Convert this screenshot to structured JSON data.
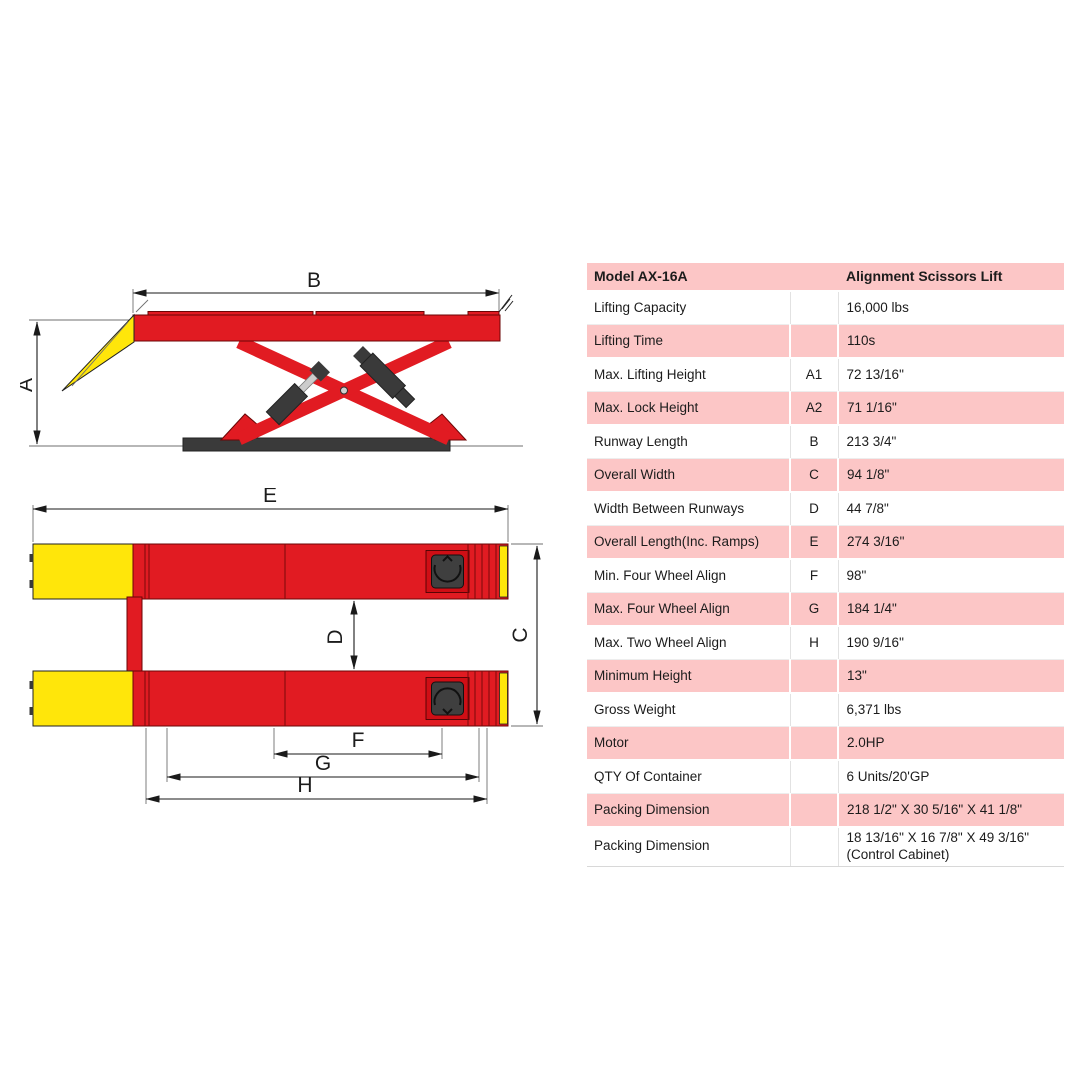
{
  "table": {
    "header": {
      "model": "Model AX-16A",
      "product": "Alignment Scissors Lift"
    },
    "rows": [
      {
        "label": "Lifting Capacity",
        "letter": "",
        "value": "16,000 lbs",
        "shade": "white"
      },
      {
        "label": "Lifting Time",
        "letter": "",
        "value": "110s",
        "shade": "pink"
      },
      {
        "label": "Max. Lifting Height",
        "letter": "A1",
        "value": "72 13/16\"",
        "shade": "white"
      },
      {
        "label": "Max. Lock Height",
        "letter": "A2",
        "value": "71 1/16\"",
        "shade": "pink"
      },
      {
        "label": "Runway Length",
        "letter": "B",
        "value": "213 3/4\"",
        "shade": "white"
      },
      {
        "label": "Overall Width",
        "letter": "C",
        "value": "94 1/8\"",
        "shade": "pink"
      },
      {
        "label": "Width Between Runways",
        "letter": "D",
        "value": "44 7/8\"",
        "shade": "white"
      },
      {
        "label": "Overall Length(Inc. Ramps)",
        "letter": "E",
        "value": "274 3/16\"",
        "shade": "pink"
      },
      {
        "label": "Min. Four Wheel Align",
        "letter": "F",
        "value": "98\"",
        "shade": "white"
      },
      {
        "label": "Max. Four Wheel Align",
        "letter": "G",
        "value": "184 1/4\"",
        "shade": "pink"
      },
      {
        "label": "Max. Two Wheel Align",
        "letter": "H",
        "value": "190 9/16\"",
        "shade": "white"
      },
      {
        "label": "Minimum Height",
        "letter": "",
        "value": "13\"",
        "shade": "pink"
      },
      {
        "label": "Gross Weight",
        "letter": "",
        "value": "6,371 lbs",
        "shade": "white"
      },
      {
        "label": "Motor",
        "letter": "",
        "value": "2.0HP",
        "shade": "pink"
      },
      {
        "label": "QTY Of Container",
        "letter": "",
        "value": "6 Units/20'GP",
        "shade": "white"
      },
      {
        "label": "Packing Dimension",
        "letter": "",
        "value": "218 1/2\" X 30 5/16\" X 41 1/8\"",
        "shade": "pink"
      },
      {
        "label": "Packing Dimension",
        "letter": "",
        "value": "18 13/16\" X 16 7/8\" X 49 3/16\"\n(Control Cabinet)",
        "shade": "white"
      }
    ]
  },
  "diagrams": {
    "side_view": {
      "labels": {
        "A": "A",
        "B": "B"
      }
    },
    "top_view": {
      "labels": {
        "C": "C",
        "D": "D",
        "E": "E",
        "F": "F",
        "G": "G",
        "H": "H"
      }
    }
  },
  "theme": {
    "row_pink": "#fcc6c6",
    "text": "#1c1c1c",
    "red": "#e11b22",
    "yellow": "#ffe60a",
    "dark": "#3a3a3a",
    "line": "#1a1a1a"
  }
}
